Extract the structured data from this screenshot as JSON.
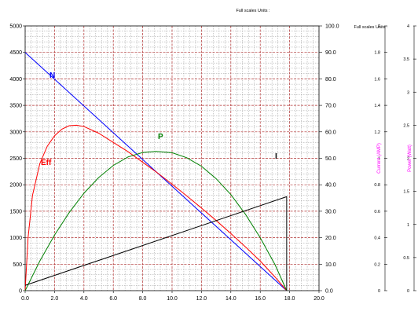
{
  "chart_data": {
    "type": "line",
    "header_text": "Full scales Units :",
    "right_header_text": "Full scales Units :",
    "x_ticks": [
      "0.0",
      "2.0",
      "4.0",
      "6.0",
      "8.0",
      "10.0",
      "12.0",
      "14.0",
      "16.0",
      "18.0",
      "20.0"
    ],
    "xlim": [
      0,
      20
    ],
    "y_left_ticks": [
      "0",
      "500",
      "1000",
      "1500",
      "2000",
      "2500",
      "3000",
      "3500",
      "4000",
      "4500",
      "5000"
    ],
    "y_left_lim": [
      0,
      5000
    ],
    "y_right_ticks": [
      "0.0",
      "10.0",
      "20.0",
      "30.0",
      "40.0",
      "50.0",
      "60.0",
      "70.0",
      "80.0",
      "90.0",
      "100.0"
    ],
    "y_right_lim": [
      0,
      100
    ],
    "current_axis": {
      "label": "Current (AMP)",
      "color": "#ff00ff",
      "ticks": [
        "0",
        "0.2",
        "0.4",
        "0.6",
        "0.8",
        "1",
        "1.2",
        "1.4",
        "1.6",
        "1.8",
        "2"
      ],
      "lim": [
        0,
        2
      ]
    },
    "power_axis": {
      "label": "Power (Watt)",
      "color": "#ff00ff",
      "ticks": [
        "0",
        "0.5",
        "1",
        "1.5",
        "2",
        "2.5",
        "3",
        "3.5",
        "4"
      ],
      "lim": [
        0,
        4
      ]
    },
    "grid": true,
    "series": [
      {
        "name": "N",
        "color": "#0000ff",
        "axis": "left",
        "x": [
          0,
          17.8
        ],
        "y": [
          4500,
          0
        ]
      },
      {
        "name": "Eff",
        "color": "#ff0000",
        "axis": "right",
        "x": [
          0,
          0.2,
          0.5,
          1.0,
          1.5,
          2.0,
          2.5,
          3.0,
          3.5,
          4.0,
          5.0,
          6.0,
          7.0,
          8.0,
          9.0,
          10.0,
          11.0,
          12.0,
          13.0,
          14.0,
          15.0,
          16.0,
          17.0,
          17.8
        ],
        "y": [
          0,
          20,
          36,
          48,
          54.5,
          58.5,
          61,
          62.3,
          62.5,
          62,
          59.5,
          56,
          52.5,
          48.5,
          44.5,
          40.2,
          35.8,
          31.2,
          26.5,
          21.6,
          16.5,
          11.2,
          5.2,
          0
        ]
      },
      {
        "name": "P",
        "color": "#008000",
        "axis": "right",
        "x": [
          0,
          1,
          2,
          3,
          4,
          5,
          6,
          7,
          8,
          8.9,
          10,
          11,
          12,
          13,
          14,
          15,
          16,
          17,
          17.8
        ],
        "y": [
          0,
          11.2,
          21,
          29.5,
          36.8,
          42.7,
          47.3,
          50.5,
          52.2,
          52.6,
          52.1,
          50.2,
          47,
          42.3,
          36.3,
          28.8,
          20,
          9.9,
          0
        ]
      },
      {
        "name": "I",
        "color": "#000000",
        "axis": "right",
        "x": [
          0,
          17.8,
          17.8
        ],
        "y": [
          2,
          35.5,
          0
        ]
      }
    ]
  }
}
